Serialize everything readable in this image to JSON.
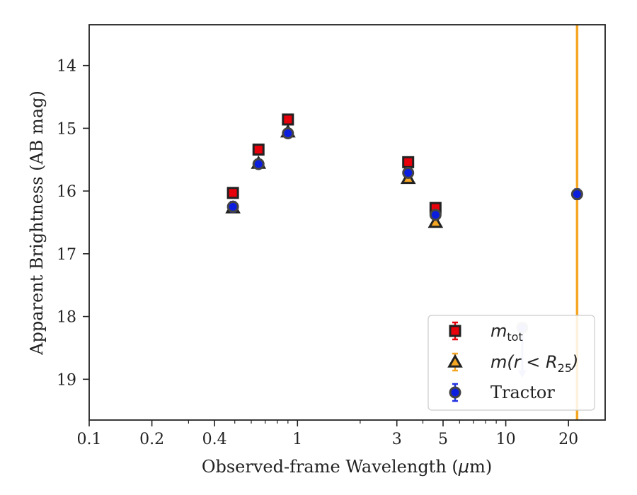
{
  "chart_data": {
    "type": "scatter",
    "xlabel_prefix": "Observed-frame Wavelength (",
    "xlabel_unit": "μ",
    "xlabel_suffix": "m)",
    "ylabel": "Apparent Brightness (AB mag)",
    "x_scale": "log",
    "y_inverted": true,
    "xlim": [
      0.1,
      30
    ],
    "ylim": [
      19.65,
      13.35
    ],
    "xticks": [
      0.1,
      0.2,
      0.4,
      1,
      3,
      5,
      10,
      20
    ],
    "xtick_labels": [
      "0.1",
      "0.2",
      "0.4",
      "1",
      "3",
      "5",
      "10",
      "20"
    ],
    "yticks": [
      14,
      15,
      16,
      17,
      18,
      19
    ],
    "ytick_labels": [
      "14",
      "15",
      "16",
      "17",
      "18",
      "19"
    ],
    "grid": false,
    "legend_position": "bottom-right",
    "vline": {
      "x": 22,
      "color": "#f5a623"
    },
    "series": [
      {
        "key": "mtot",
        "legend_main": "m",
        "legend_sub": "tot",
        "marker": "square",
        "color": "#e8000b",
        "edge": "#222222",
        "errcolor": "#e8000b",
        "points": [
          {
            "x": 0.49,
            "y": 16.03,
            "err": 0.05
          },
          {
            "x": 0.65,
            "y": 15.34,
            "err": 0.05
          },
          {
            "x": 0.9,
            "y": 14.86,
            "err": 0.05
          },
          {
            "x": 3.4,
            "y": 15.54,
            "err": 0.05
          },
          {
            "x": 4.6,
            "y": 16.27,
            "err": 0.05
          }
        ]
      },
      {
        "key": "mr25",
        "legend_main": "m(r < R",
        "legend_sub": "25",
        "legend_end": ")",
        "marker": "triangle",
        "color": "#f5a623",
        "edge": "#222222",
        "errcolor": "#f5a623",
        "points": [
          {
            "x": 0.49,
            "y": 16.27,
            "err": 0.05
          },
          {
            "x": 0.65,
            "y": 15.56,
            "err": 0.05
          },
          {
            "x": 0.9,
            "y": 15.06,
            "err": 0.05
          },
          {
            "x": 3.4,
            "y": 15.8,
            "err": 0.05
          },
          {
            "x": 4.6,
            "y": 16.5,
            "err": 0.05
          }
        ]
      },
      {
        "key": "tractor",
        "legend_main": "Tractor",
        "marker": "circle",
        "color": "#0b1ee0",
        "edge": "#444444",
        "errcolor": "#2233e0",
        "points": [
          {
            "x": 0.49,
            "y": 16.25,
            "err": 0.08
          },
          {
            "x": 0.65,
            "y": 15.57,
            "err": 0.06
          },
          {
            "x": 0.9,
            "y": 15.08,
            "err": 0.05
          },
          {
            "x": 3.4,
            "y": 15.71,
            "err": 0.05
          },
          {
            "x": 4.6,
            "y": 16.38,
            "err": 0.06
          },
          {
            "x": 22,
            "y": 16.05,
            "err": 0.08
          }
        ],
        "upper_limits": [
          {
            "x": 12,
            "y": 18.18,
            "to": 18.95
          }
        ]
      }
    ]
  }
}
